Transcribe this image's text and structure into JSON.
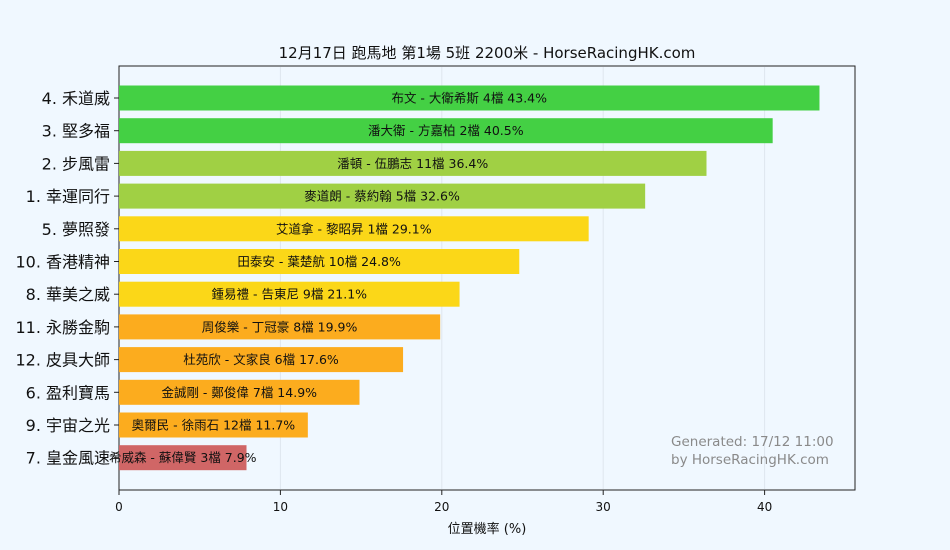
{
  "chart_data": {
    "type": "bar",
    "orientation": "horizontal",
    "title": "12月17日  跑馬地  第1場  5班  2200米 - HorseRacingHK.com",
    "xlabel": "位置機率 (%)",
    "ylabel": "",
    "xlim": [
      0,
      45.6
    ],
    "xticks": [
      0,
      10,
      20,
      30,
      40
    ],
    "grid": true,
    "categories": [
      "4. 禾道威",
      "3. 堅多福",
      "2. 步風雷",
      "1. 幸運同行",
      "5. 夢照發",
      "10. 香港精神",
      "8. 華美之威",
      "11. 永勝金駒",
      "12. 皮具大師",
      "6. 盈利寶馬",
      "9. 宇宙之光",
      "7. 皇金風速"
    ],
    "values": [
      43.4,
      40.5,
      36.4,
      32.6,
      29.1,
      24.8,
      21.1,
      19.9,
      17.6,
      14.9,
      11.7,
      7.9
    ],
    "bar_labels": [
      "布文 - 大衛希斯 4檔  43.4%",
      "潘大衛 - 方嘉柏 2檔  40.5%",
      "潘頓 - 伍鵬志 11檔  36.4%",
      "麥道朗 - 蔡約翰 5檔  32.6%",
      "艾道拿 - 黎昭昇 1檔  29.1%",
      "田泰安 - 葉楚航 10檔  24.8%",
      "鍾易禮 - 告東尼 9檔  21.1%",
      "周俊樂 - 丁冠豪 8檔  19.9%",
      "杜苑欣 - 文家良 6檔  17.6%",
      "金誠剛 - 鄭俊偉 7檔  14.9%",
      "奧爾民 - 徐雨石 12檔  11.7%",
      "希威森 - 蘇偉賢 3檔  7.9%"
    ],
    "bar_colors": [
      "#44d044",
      "#44d044",
      "#a0d044",
      "#a0d044",
      "#fbd718",
      "#fbd718",
      "#fbd718",
      "#fcac1e",
      "#fcac1e",
      "#fcac1e",
      "#fcac1e",
      "#d06666"
    ],
    "annotation": [
      "Generated: 17/12 11:00",
      "by HorseRacingHK.com"
    ]
  },
  "colors": {
    "background": "#f0f8ff",
    "grid": "#dfe6ee",
    "annotation": "#8a8a8a"
  }
}
